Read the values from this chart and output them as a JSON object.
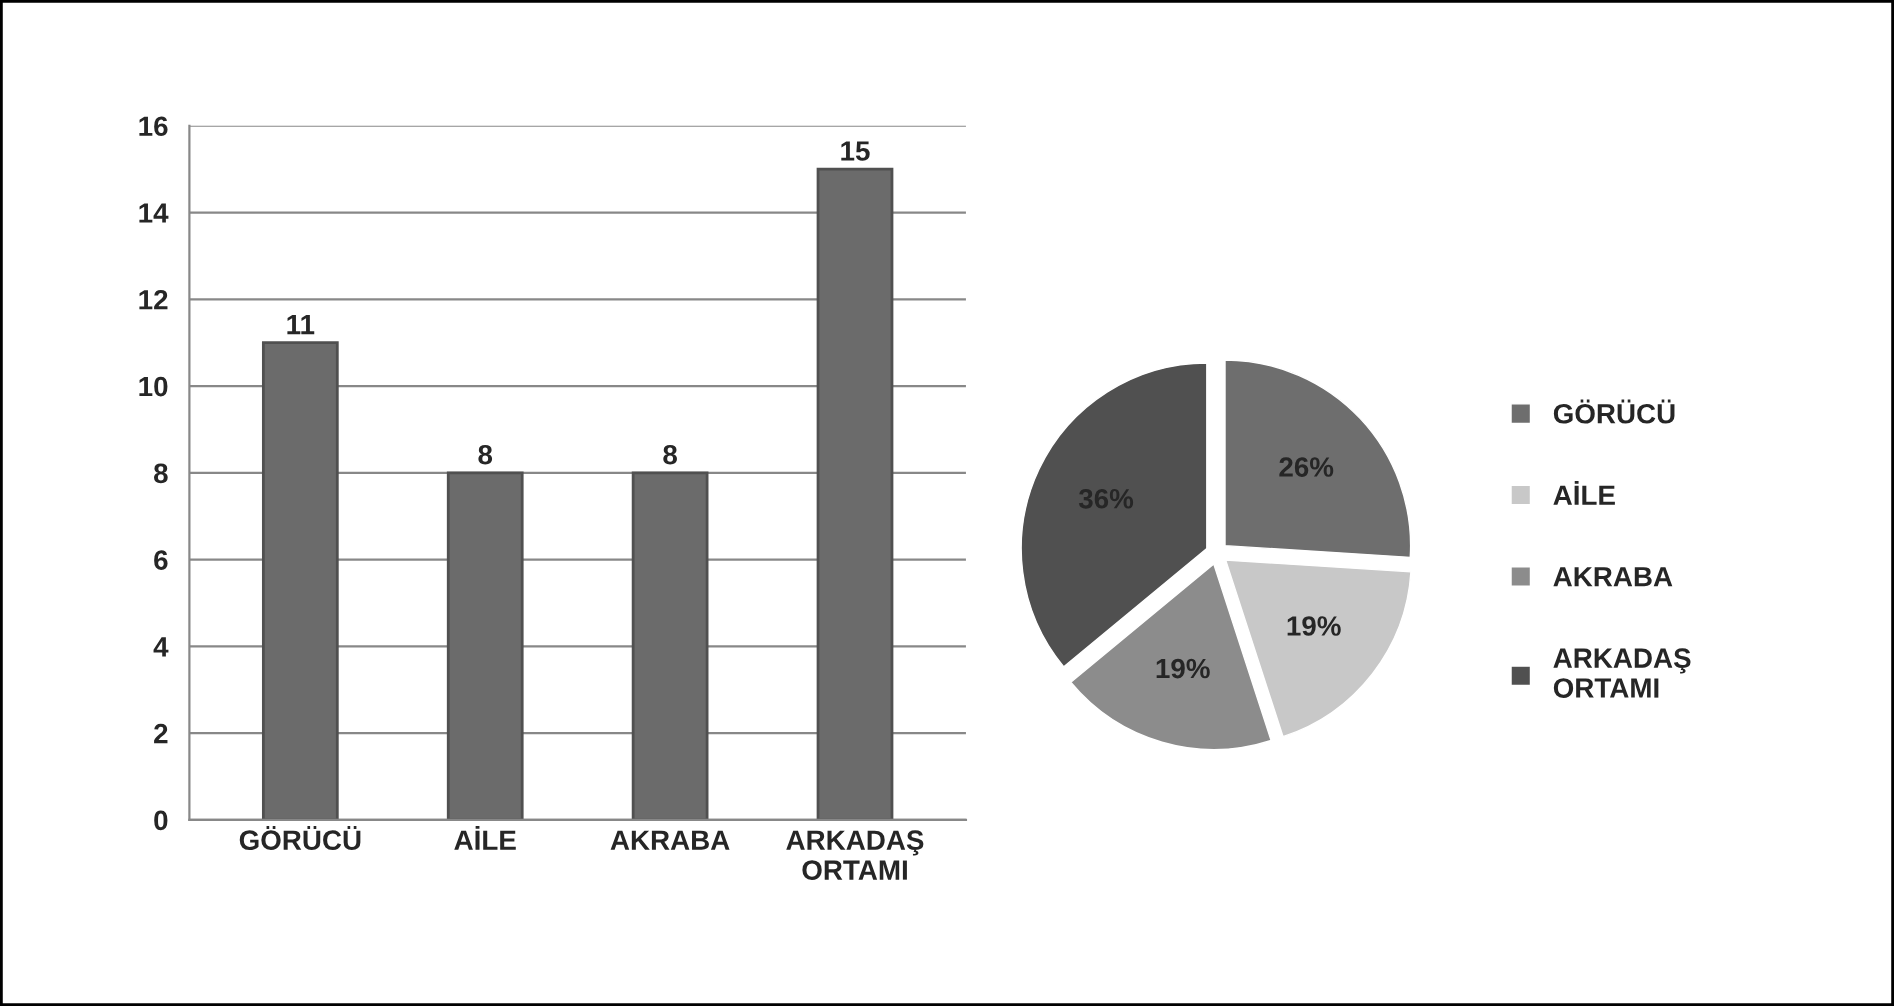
{
  "chart_data": [
    {
      "type": "bar",
      "categories": [
        "GÖRÜCÜ",
        "AİLE",
        "AKRABA",
        "ARKADAŞ\nORTAMI"
      ],
      "values": [
        11,
        8,
        8,
        15
      ],
      "color": "#6b6b6b",
      "ylim": [
        0,
        16
      ],
      "yticks": [
        0,
        2,
        4,
        6,
        8,
        10,
        12,
        14,
        16
      ],
      "grid": "y",
      "data_labels": true
    },
    {
      "type": "pie",
      "categories": [
        "GÖRÜCÜ",
        "AİLE",
        "AKRABA",
        "ARKADAŞ\nORTAMI"
      ],
      "values": [
        26,
        19,
        19,
        36
      ],
      "colors": [
        "#6e6e6e",
        "#c8c8c8",
        "#8c8c8c",
        "#505050"
      ],
      "value_labels": [
        "26%",
        "19%",
        "19%",
        "36%"
      ],
      "legend": "right"
    }
  ]
}
